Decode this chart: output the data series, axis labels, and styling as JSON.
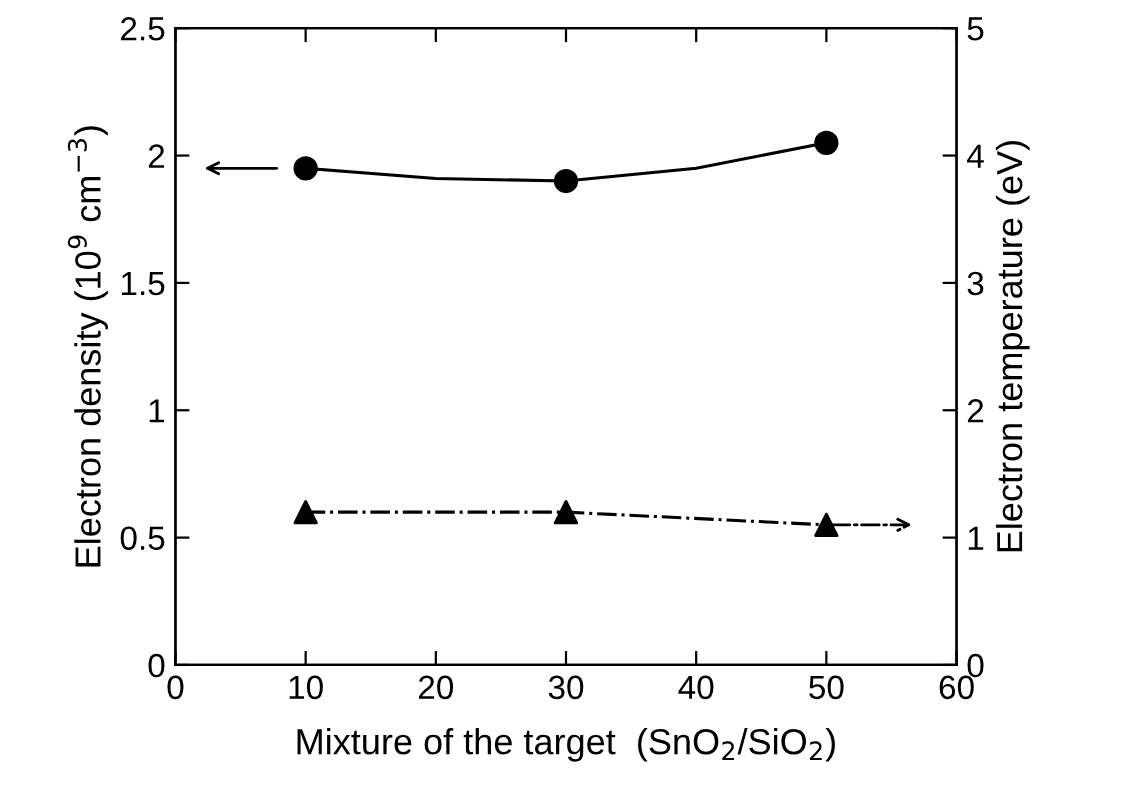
{
  "chart_data": {
    "type": "scatter",
    "xlabel": "Mixture of the target  (SnO$_{2}$/SiO$_{2}$)",
    "ylabel": "Electron density (10$^{9}$ cm$^{−3}$)",
    "y2label": "Electron temperature (eV)",
    "xlim": [
      0,
      60
    ],
    "xticks": [
      0,
      10,
      20,
      30,
      40,
      50,
      60
    ],
    "ylim": [
      0,
      2.5
    ],
    "yticks": [
      0,
      0.5,
      1,
      1.5,
      2,
      2.5
    ],
    "y2lim": [
      0,
      5
    ],
    "y2ticks": [
      0,
      1,
      2,
      3,
      4,
      5
    ],
    "grid": false,
    "legend": false,
    "series": [
      {
        "marker": "circle",
        "color": "#000000",
        "x": [
          10,
          30,
          50
        ],
        "values": [
          1.95,
          1.9,
          2.05
        ]
      },
      {
        "type": "line",
        "line_style": "solid",
        "marker": "none",
        "color": "#000000",
        "x": [
          10,
          20,
          30,
          40,
          50
        ],
        "values": [
          1.95,
          1.91,
          1.9,
          1.95,
          2.05
        ]
      },
      {
        "marker": "triangle",
        "axis": "y2",
        "color": "#000000",
        "x": [
          10,
          30,
          50
        ],
        "values": [
          1.2,
          1.2,
          1.1
        ]
      },
      {
        "type": "line",
        "line_style": "dashdot",
        "marker": "none",
        "axis": "y2",
        "color": "#000000",
        "x": [
          10,
          30,
          50
        ],
        "values": [
          1.2,
          1.2,
          1.1
        ]
      }
    ]
  }
}
